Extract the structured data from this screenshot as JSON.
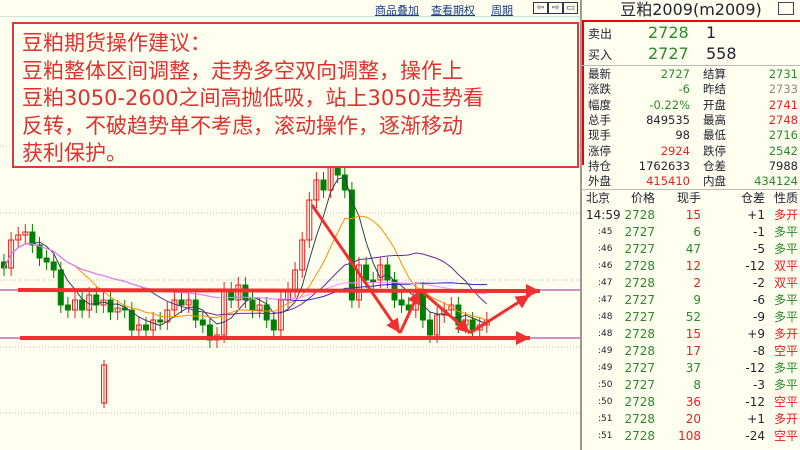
{
  "toolbar": {
    "overlay": "商品叠加",
    "options": "查看期权",
    "period": "周期",
    "btn_left": "⇦",
    "btn_right": "⇨",
    "btn_split": "▭"
  },
  "note": {
    "lines": [
      "豆粕期货操作建议：",
      "豆粕整体区间调整，走势多空双向调整，操作上",
      "豆粕3050-2600之间高抛低吸，站上3050走势看",
      "反转，不破趋势单不考虑，滚动操作，逐渐移动",
      "获利保护。"
    ]
  },
  "colors": {
    "up": "#e82020",
    "down": "#008000",
    "ma_pink": "#ff88ff",
    "ma_blue": "#2020e0",
    "ma_orange": "#ff9000",
    "ma_purple": "#6a2a9a",
    "ma_gray": "#304050",
    "level_line": "#a020a0",
    "annotation": "#f03030"
  },
  "panel": {
    "title": "豆粕2009(m2009)",
    "ask": {
      "label": "卖出",
      "price": "2728",
      "vol": "1"
    },
    "bid": {
      "label": "买入",
      "price": "2727",
      "vol": "558"
    },
    "quotes": [
      {
        "k1": "最新",
        "v1": "2727",
        "c1": "g",
        "k2": "结算",
        "v2": "2731",
        "c2": "g"
      },
      {
        "k1": "涨跌",
        "v1": "-6",
        "c1": "g",
        "k2": "昨结",
        "v2": "2733",
        "c2": "gr"
      },
      {
        "k1": "幅度",
        "v1": "-0.22%",
        "c1": "g",
        "k2": "开盘",
        "v2": "2741",
        "c2": "r"
      },
      {
        "k1": "总手",
        "v1": "849535",
        "c1": "n",
        "k2": "最高",
        "v2": "2748",
        "c2": "r"
      },
      {
        "k1": "现手",
        "v1": "98",
        "c1": "n",
        "k2": "最低",
        "v2": "2716",
        "c2": "g"
      },
      {
        "k1": "涨停",
        "v1": "2924",
        "c1": "r",
        "k2": "跌停",
        "v2": "2542",
        "c2": "g"
      },
      {
        "k1": "持仓",
        "v1": "1762633",
        "c1": "n",
        "k2": "仓差",
        "v2": "7988",
        "c2": "n"
      },
      {
        "k1": "外盘",
        "v1": "415410",
        "c1": "r",
        "k2": "内盘",
        "v2": "434124",
        "c2": "g"
      }
    ],
    "ticks_header": [
      "北京",
      "价格",
      "现手",
      "仓差",
      "性质"
    ],
    "ticks": [
      {
        "t": "14:59",
        "p": "2728",
        "v": "15",
        "vc": "r",
        "d": "+1",
        "n": "多开",
        "nc": "r"
      },
      {
        "t": ":45",
        "p": "2727",
        "v": "6",
        "vc": "g",
        "d": "-1",
        "n": "多平",
        "nc": "g"
      },
      {
        "t": ":46",
        "p": "2727",
        "v": "47",
        "vc": "g",
        "d": "-5",
        "n": "多平",
        "nc": "g"
      },
      {
        "t": ":46",
        "p": "2728",
        "v": "12",
        "vc": "r",
        "d": "-12",
        "n": "双平",
        "nc": "r"
      },
      {
        "t": ":47",
        "p": "2728",
        "v": "2",
        "vc": "r",
        "d": "-2",
        "n": "双平",
        "nc": "r"
      },
      {
        "t": ":47",
        "p": "2727",
        "v": "9",
        "vc": "g",
        "d": "-6",
        "n": "多平",
        "nc": "g"
      },
      {
        "t": ":48",
        "p": "2727",
        "v": "52",
        "vc": "g",
        "d": "-9",
        "n": "多平",
        "nc": "g"
      },
      {
        "t": ":48",
        "p": "2728",
        "v": "15",
        "vc": "r",
        "d": "+9",
        "n": "多开",
        "nc": "r"
      },
      {
        "t": ":49",
        "p": "2728",
        "v": "17",
        "vc": "r",
        "d": "-8",
        "n": "空平",
        "nc": "r"
      },
      {
        "t": ":49",
        "p": "2727",
        "v": "37",
        "vc": "g",
        "d": "-12",
        "n": "多平",
        "nc": "g"
      },
      {
        "t": ":50",
        "p": "2727",
        "v": "8",
        "vc": "g",
        "d": "-3",
        "n": "多平",
        "nc": "g"
      },
      {
        "t": ":50",
        "p": "2728",
        "v": "36",
        "vc": "r",
        "d": "-12",
        "n": "空平",
        "nc": "r"
      },
      {
        "t": ":51",
        "p": "2728",
        "v": "20",
        "vc": "r",
        "d": "+1",
        "n": "多开",
        "nc": "r"
      },
      {
        "t": ":51",
        "p": "2728",
        "v": "108",
        "vc": "r",
        "d": "-24",
        "n": "空平",
        "nc": "r"
      }
    ]
  }
}
